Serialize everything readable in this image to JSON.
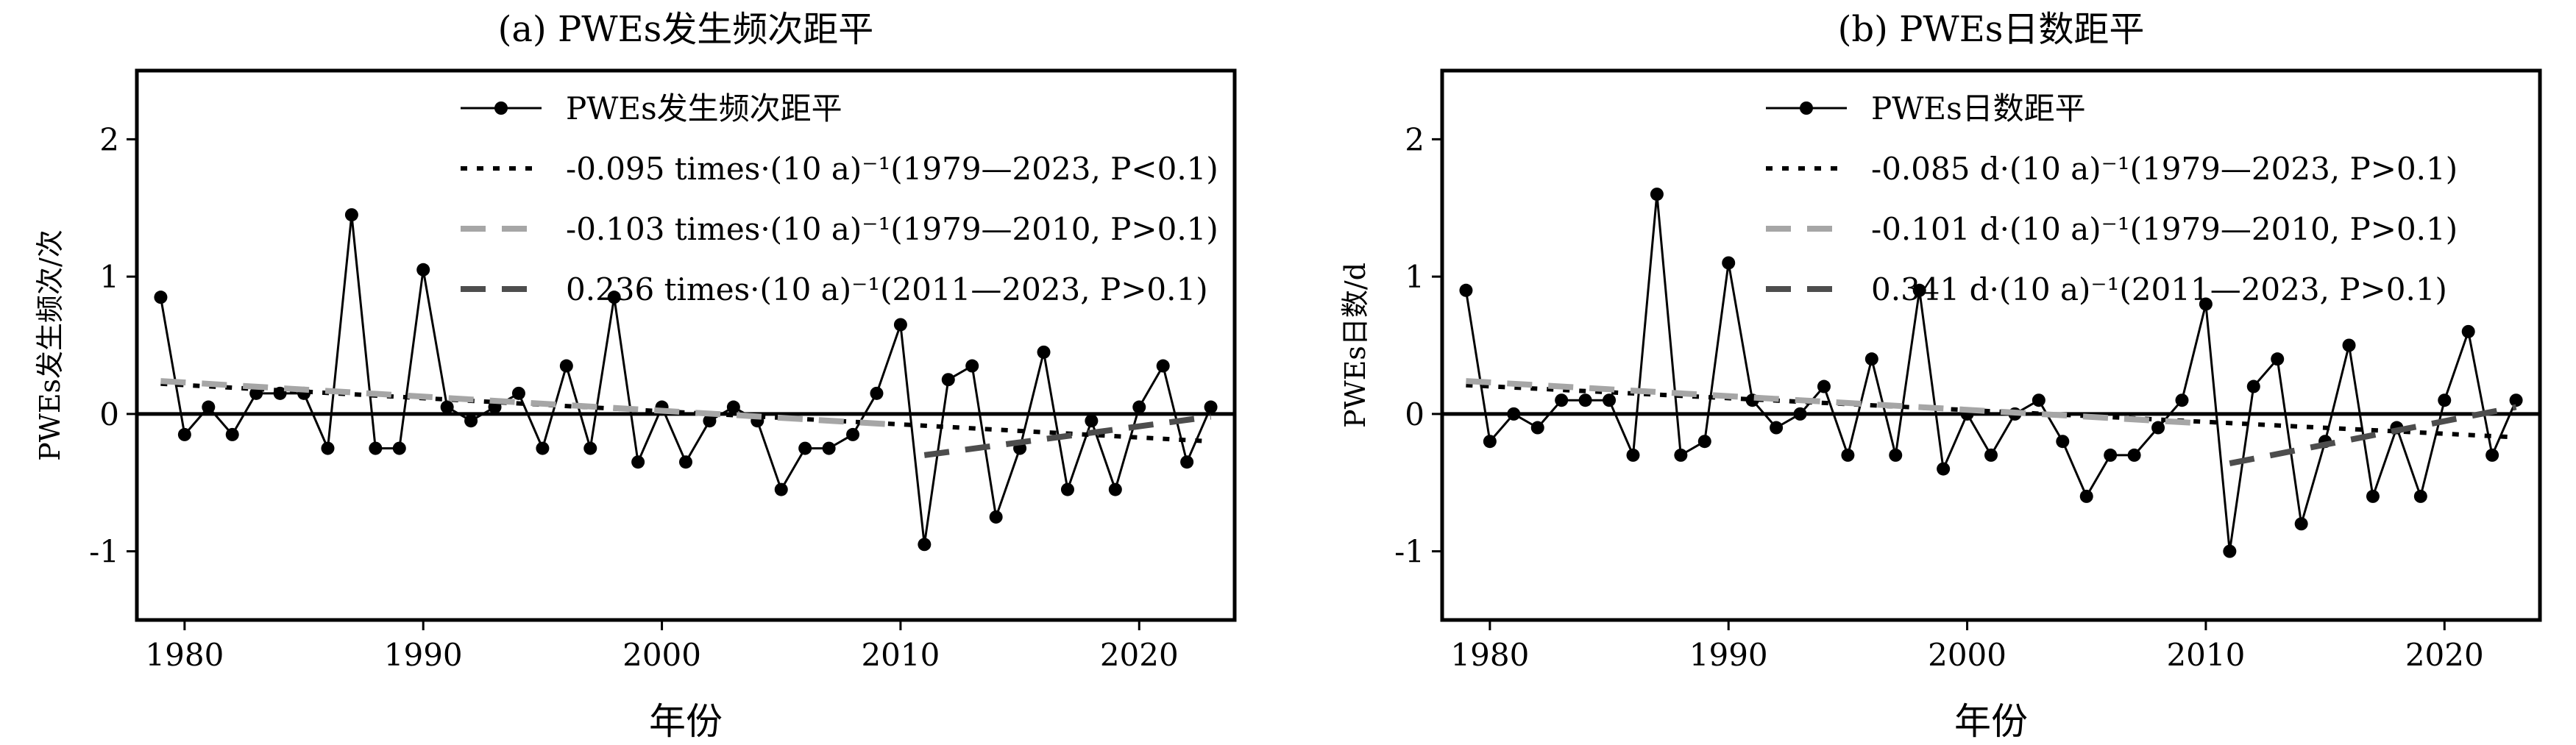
{
  "chart_data": [
    {
      "type": "line",
      "title": "(a) PWEs发生频次距平",
      "xlabel": "年份",
      "ylabel": "PWEs发生频次/次",
      "xlim": [
        1978,
        2024
      ],
      "ylim": [
        -1.5,
        2.5
      ],
      "xticks": [
        1980,
        1990,
        2000,
        2010,
        2020
      ],
      "yticks": [
        2,
        1,
        0,
        -1
      ],
      "zero_line": true,
      "legend_position": "top-center",
      "series": [
        {
          "name": "PWEs发生频次距平",
          "style": "solid-marker",
          "color": "#000000",
          "x": [
            1979,
            1980,
            1981,
            1982,
            1983,
            1984,
            1985,
            1986,
            1987,
            1988,
            1989,
            1990,
            1991,
            1992,
            1993,
            1994,
            1995,
            1996,
            1997,
            1998,
            1999,
            2000,
            2001,
            2002,
            2003,
            2004,
            2005,
            2006,
            2007,
            2008,
            2009,
            2010,
            2011,
            2012,
            2013,
            2014,
            2015,
            2016,
            2017,
            2018,
            2019,
            2020,
            2021,
            2022,
            2023
          ],
          "values": [
            0.85,
            -0.15,
            0.05,
            -0.15,
            0.15,
            0.15,
            0.15,
            -0.25,
            1.45,
            -0.25,
            -0.25,
            1.05,
            0.05,
            -0.05,
            0.05,
            0.15,
            -0.25,
            0.35,
            -0.25,
            0.85,
            -0.35,
            0.05,
            -0.35,
            -0.05,
            0.05,
            -0.05,
            -0.55,
            -0.25,
            -0.25,
            -0.15,
            0.15,
            0.65,
            -0.95,
            0.25,
            0.35,
            -0.75,
            -0.25,
            0.45,
            -0.55,
            -0.05,
            -0.55,
            0.05,
            0.35,
            -0.35,
            0.05
          ]
        },
        {
          "name": "-0.095 times·(10 a)⁻¹(1979—2023, P<0.1)",
          "style": "dotted",
          "color": "#000000",
          "x": [
            1979,
            2023
          ],
          "values": [
            0.22,
            -0.2
          ]
        },
        {
          "name": "-0.103 times·(10 a)⁻¹(1979—2010, P>0.1)",
          "style": "dashed",
          "color": "#a6a6a6",
          "x": [
            1979,
            2010
          ],
          "values": [
            0.24,
            -0.08
          ]
        },
        {
          "name": "0.236 times·(10 a)⁻¹(2011—2023, P>0.1)",
          "style": "dashed",
          "color": "#4d4d4d",
          "x": [
            2011,
            2023
          ],
          "values": [
            -0.3,
            -0.02
          ]
        }
      ]
    },
    {
      "type": "line",
      "title": "(b) PWEs日数距平",
      "xlabel": "年份",
      "ylabel": "PWEs日数/d",
      "xlim": [
        1978,
        2024
      ],
      "ylim": [
        -1.5,
        2.5
      ],
      "xticks": [
        1980,
        1990,
        2000,
        2010,
        2020
      ],
      "yticks": [
        2,
        1,
        0,
        -1
      ],
      "zero_line": true,
      "legend_position": "top-center",
      "series": [
        {
          "name": "PWEs日数距平",
          "style": "solid-marker",
          "color": "#000000",
          "x": [
            1979,
            1980,
            1981,
            1982,
            1983,
            1984,
            1985,
            1986,
            1987,
            1988,
            1989,
            1990,
            1991,
            1992,
            1993,
            1994,
            1995,
            1996,
            1997,
            1998,
            1999,
            2000,
            2001,
            2002,
            2003,
            2004,
            2005,
            2006,
            2007,
            2008,
            2009,
            2010,
            2011,
            2012,
            2013,
            2014,
            2015,
            2016,
            2017,
            2018,
            2019,
            2020,
            2021,
            2022,
            2023
          ],
          "values": [
            0.9,
            -0.2,
            0.0,
            -0.1,
            0.1,
            0.1,
            0.1,
            -0.3,
            1.6,
            -0.3,
            -0.2,
            1.1,
            0.1,
            -0.1,
            0.0,
            0.2,
            -0.3,
            0.4,
            -0.3,
            0.9,
            -0.4,
            0.0,
            -0.3,
            0.0,
            0.1,
            -0.2,
            -0.6,
            -0.3,
            -0.3,
            -0.1,
            0.1,
            0.8,
            -1.0,
            0.2,
            0.4,
            -0.8,
            -0.2,
            0.5,
            -0.6,
            -0.1,
            -0.6,
            0.1,
            0.6,
            -0.3,
            0.1
          ]
        },
        {
          "name": "-0.085 d·(10 a)⁻¹(1979—2023, P>0.1)",
          "style": "dotted",
          "color": "#000000",
          "x": [
            1979,
            2023
          ],
          "values": [
            0.21,
            -0.17
          ]
        },
        {
          "name": "-0.101 d·(10 a)⁻¹(1979—2010, P>0.1)",
          "style": "dashed",
          "color": "#a6a6a6",
          "x": [
            1979,
            2010
          ],
          "values": [
            0.24,
            -0.07
          ]
        },
        {
          "name": "0.341 d·(10 a)⁻¹(2011—2023, P>0.1)",
          "style": "dashed",
          "color": "#4d4d4d",
          "x": [
            2011,
            2023
          ],
          "values": [
            -0.36,
            0.05
          ]
        }
      ]
    }
  ]
}
